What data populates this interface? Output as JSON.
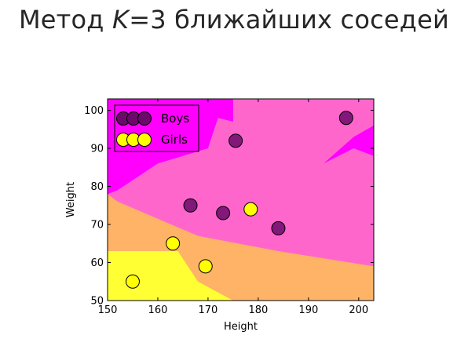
{
  "slide": {
    "title_prefix": "Метод ",
    "title_k": "K",
    "title_suffix": "=3 ближайших соседей"
  },
  "colors": {
    "region_boys_strong": "#ff00ff",
    "region_mixed": "#ff66cc",
    "region_girls_mixed": "#ffb366",
    "region_girls_strong": "#ffff33",
    "boys_marker": "#6b0a6b",
    "girls_marker": "#ffff00"
  },
  "chart_data": {
    "type": "scatter",
    "title": "",
    "xlabel": "Height",
    "ylabel": "Weight",
    "xlim": [
      150,
      203
    ],
    "ylim": [
      50,
      103
    ],
    "xticks": [
      150,
      160,
      170,
      180,
      190,
      200
    ],
    "yticks": [
      50,
      60,
      70,
      80,
      90,
      100
    ],
    "grid": false,
    "legend_position": "top-left",
    "series": [
      {
        "name": "Boys",
        "color": "#6b0a6b",
        "points": [
          {
            "x": 166.5,
            "y": 75
          },
          {
            "x": 173,
            "y": 73
          },
          {
            "x": 175.5,
            "y": 92
          },
          {
            "x": 184,
            "y": 69
          },
          {
            "x": 197.5,
            "y": 98
          }
        ]
      },
      {
        "name": "Girls",
        "color": "#ffff00",
        "points": [
          {
            "x": 155,
            "y": 55
          },
          {
            "x": 163,
            "y": 65
          },
          {
            "x": 169.5,
            "y": 59
          },
          {
            "x": 178.5,
            "y": 74
          }
        ]
      }
    ],
    "regions": [
      {
        "name": "girls-orange",
        "color": "#ffb366",
        "polygon": [
          [
            150,
            50
          ],
          [
            203,
            50
          ],
          [
            203,
            59
          ],
          [
            184,
            63
          ],
          [
            168,
            67
          ],
          [
            152,
            76
          ],
          [
            150,
            78
          ]
        ]
      },
      {
        "name": "girls-yellow",
        "color": "#ffff33",
        "polygon": [
          [
            150,
            50
          ],
          [
            175,
            50
          ],
          [
            168,
            55
          ],
          [
            164,
            63
          ],
          [
            150,
            63
          ]
        ]
      },
      {
        "name": "boys-magenta-left",
        "color": "#ff00ff",
        "polygon": [
          [
            150,
            103
          ],
          [
            175,
            103
          ],
          [
            175,
            97
          ],
          [
            172,
            98
          ],
          [
            170,
            90
          ],
          [
            160,
            86
          ],
          [
            152,
            79
          ],
          [
            150,
            78
          ]
        ]
      },
      {
        "name": "boys-magenta-right",
        "color": "#ff00ff",
        "polygon": [
          [
            193,
            86
          ],
          [
            199,
            93
          ],
          [
            203,
            96
          ],
          [
            203,
            88
          ],
          [
            199,
            90
          ]
        ]
      }
    ]
  }
}
